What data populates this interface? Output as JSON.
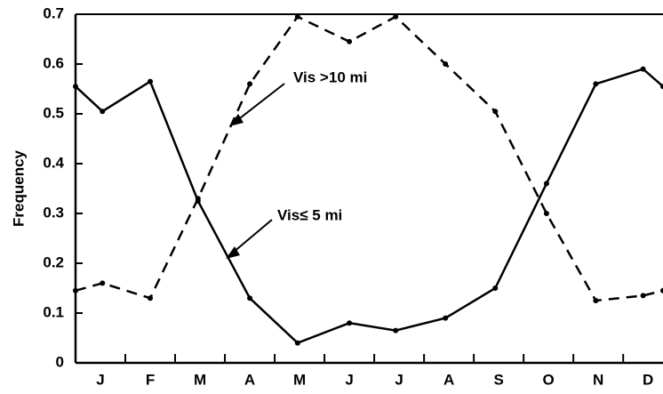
{
  "chart_data": {
    "type": "line",
    "y_label": "Frequency",
    "x": [
      0,
      0.54,
      1.5,
      2.46,
      3.5,
      4.46,
      5.5,
      6.43,
      7.43,
      8.43,
      9.46,
      10.45,
      11.4,
      11.8
    ],
    "series": [
      {
        "name": "Vis >10 mi",
        "color": "#000000",
        "linestyle": "dashed",
        "values": [
          0.145,
          0.16,
          0.13,
          0.33,
          0.56,
          0.695,
          0.645,
          0.695,
          0.6,
          0.505,
          0.3,
          0.125,
          0.135,
          0.145
        ]
      },
      {
        "name": "Vis≤ 5 mi",
        "color": "#000000",
        "linestyle": "solid",
        "values": [
          0.555,
          0.505,
          0.565,
          0.325,
          0.13,
          0.04,
          0.08,
          0.065,
          0.09,
          0.15,
          0.36,
          0.56,
          0.59,
          0.555
        ]
      }
    ],
    "xlim": [
      0,
      11.8
    ],
    "xticks": [
      {
        "value": 0.5,
        "label": "J"
      },
      {
        "value": 1.5,
        "label": "F"
      },
      {
        "value": 2.5,
        "label": "M"
      },
      {
        "value": 3.5,
        "label": "A"
      },
      {
        "value": 4.5,
        "label": "M"
      },
      {
        "value": 5.5,
        "label": "J"
      },
      {
        "value": 6.5,
        "label": "J"
      },
      {
        "value": 7.5,
        "label": "A"
      },
      {
        "value": 8.5,
        "label": "S"
      },
      {
        "value": 9.5,
        "label": "O"
      },
      {
        "value": 10.5,
        "label": "N"
      },
      {
        "value": 11.5,
        "label": "D"
      }
    ],
    "xtick_marks": [
      1,
      2,
      3,
      4,
      5,
      6,
      7,
      8,
      9,
      10,
      11
    ],
    "ylim": [
      0,
      0.7
    ],
    "yticks": [
      0,
      0.1,
      0.2,
      0.3,
      0.4,
      0.5,
      0.6,
      0.7
    ],
    "grid": false
  }
}
